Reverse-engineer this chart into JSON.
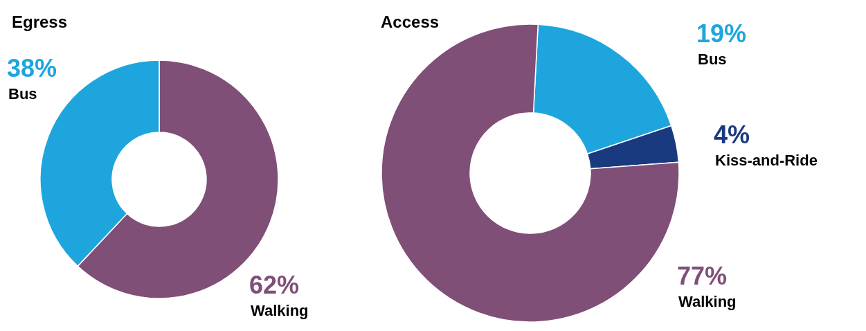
{
  "chart_data": [
    {
      "type": "donut",
      "title": "Egress",
      "categories": [
        "Walking",
        "Bus"
      ],
      "values": [
        62,
        38
      ],
      "colors": [
        "#7f4f77",
        "#1ea5de"
      ],
      "value_labels": [
        "62%",
        "38%"
      ]
    },
    {
      "type": "donut",
      "title": "Access",
      "categories": [
        "Bus",
        "Kiss-and-Ride",
        "Walking"
      ],
      "values": [
        19,
        4,
        77
      ],
      "colors": [
        "#1ea5de",
        "#1a3a80",
        "#7f4f77"
      ],
      "value_labels": [
        "19%",
        "4%",
        "77%"
      ]
    }
  ]
}
